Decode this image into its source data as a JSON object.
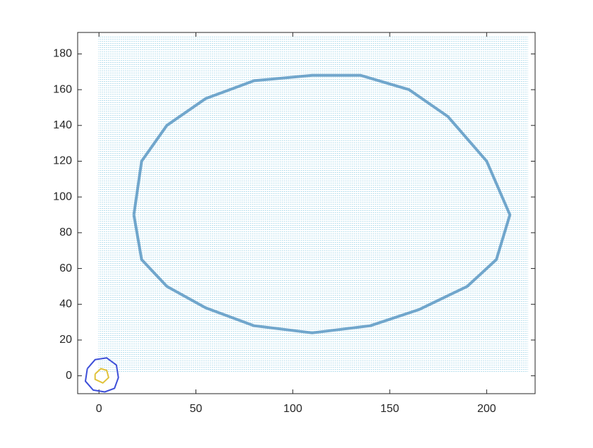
{
  "chart_data": {
    "type": "line",
    "xlim": [
      -11,
      225
    ],
    "ylim": [
      -10,
      192
    ],
    "xticks": [
      0,
      50,
      100,
      150,
      200
    ],
    "yticks": [
      0,
      20,
      40,
      60,
      80,
      100,
      120,
      140,
      160,
      180
    ],
    "series": [
      {
        "color": "#3b83b8",
        "x": [
          18,
          22,
          35,
          55,
          80,
          110,
          135,
          160,
          180,
          200,
          212,
          205,
          190,
          165,
          140,
          110,
          80,
          55,
          35,
          22,
          18
        ],
        "values": [
          90,
          120,
          140,
          155,
          165,
          168,
          168,
          160,
          145,
          120,
          90,
          65,
          50,
          37,
          28,
          24,
          28,
          38,
          50,
          65,
          90
        ]
      },
      {
        "color": "#3d4fd8",
        "x": [
          -6,
          -2,
          4,
          9,
          10,
          8,
          3,
          -3,
          -7,
          -6
        ],
        "values": [
          4,
          9,
          10,
          6,
          -1,
          -7,
          -9,
          -8,
          -3,
          4
        ]
      },
      {
        "color": "#e0c23a",
        "x": [
          -2,
          1,
          4,
          5,
          2,
          -2,
          -2
        ],
        "values": [
          1,
          4,
          3,
          -1,
          -4,
          -2,
          1
        ]
      }
    ]
  }
}
